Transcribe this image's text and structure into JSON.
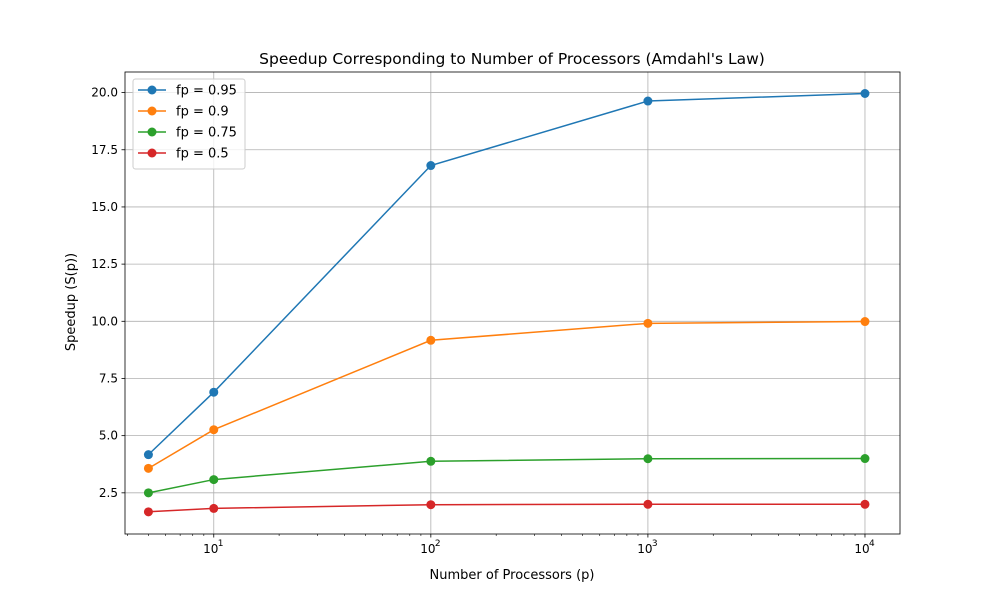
{
  "chart_data": {
    "type": "line",
    "title": "Speedup Corresponding to Number of Processors (Amdahl's Law)",
    "xlabel": "Number of Processors (p)",
    "ylabel": "Speedup (S(p))",
    "xscale": "log",
    "xlim": [
      3.9,
      14500
    ],
    "ylim": [
      0.7,
      20.9
    ],
    "x": [
      5,
      10,
      100,
      1000,
      10000
    ],
    "x_ticks": [
      {
        "value": 10,
        "base": "10",
        "exp": "1"
      },
      {
        "value": 100,
        "base": "10",
        "exp": "2"
      },
      {
        "value": 1000,
        "base": "10",
        "exp": "3"
      },
      {
        "value": 10000,
        "base": "10",
        "exp": "4"
      }
    ],
    "y_ticks": [
      2.5,
      5.0,
      7.5,
      10.0,
      12.5,
      15.0,
      17.5,
      20.0
    ],
    "y_tick_labels": [
      "2.5",
      "5.0",
      "7.5",
      "10.0",
      "12.5",
      "15.0",
      "17.5",
      "20.0"
    ],
    "grid": true,
    "legend_position": "top-left",
    "series": [
      {
        "name": "fp = 0.95",
        "color": "#1f77b4",
        "values": [
          4.17,
          6.9,
          16.81,
          19.63,
          19.96
        ]
      },
      {
        "name": "fp = 0.9",
        "color": "#ff7f0e",
        "values": [
          3.57,
          5.26,
          9.17,
          9.91,
          9.99
        ]
      },
      {
        "name": "fp = 0.75",
        "color": "#2ca02c",
        "values": [
          2.5,
          3.08,
          3.88,
          3.99,
          4.0
        ]
      },
      {
        "name": "fp = 0.5",
        "color": "#d62728",
        "values": [
          1.67,
          1.82,
          1.98,
          2.0,
          2.0
        ]
      }
    ]
  }
}
